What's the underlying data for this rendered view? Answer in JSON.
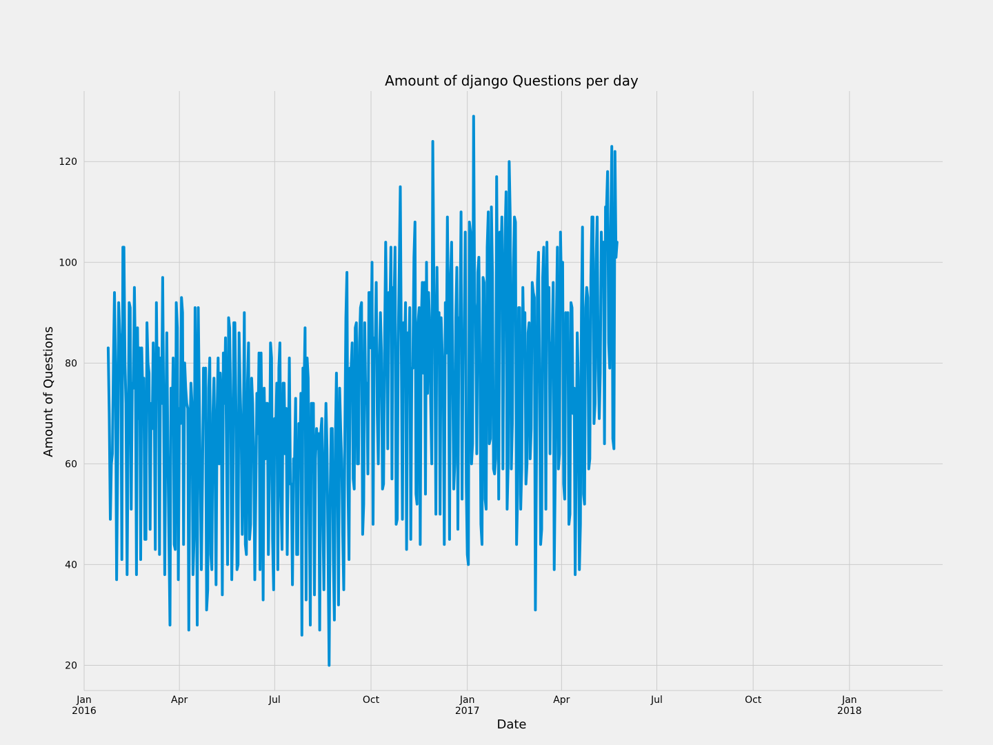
{
  "chart_data": {
    "type": "line",
    "title": "Amount of django Questions per day",
    "xlabel": "Date",
    "ylabel": "Amount of Questions",
    "grid": true,
    "colors": {
      "background": "#f0f0f0",
      "line": "#008fd5",
      "grid": "#cbcbcb"
    },
    "xlim": [
      "2016-01-01",
      "2018-03-31"
    ],
    "ylim": [
      15,
      134
    ],
    "yticks": [
      20,
      40,
      60,
      80,
      100,
      120
    ],
    "xticks": [
      {
        "date": "2016-01-01",
        "label": "Jan",
        "sublabel": "2016"
      },
      {
        "date": "2016-04-01",
        "label": "Apr",
        "sublabel": ""
      },
      {
        "date": "2016-07-01",
        "label": "Jul",
        "sublabel": ""
      },
      {
        "date": "2016-10-01",
        "label": "Oct",
        "sublabel": ""
      },
      {
        "date": "2017-01-01",
        "label": "Jan",
        "sublabel": "2017"
      },
      {
        "date": "2017-04-01",
        "label": "Apr",
        "sublabel": ""
      },
      {
        "date": "2017-07-01",
        "label": "Jul",
        "sublabel": ""
      },
      {
        "date": "2017-10-01",
        "label": "Oct",
        "sublabel": ""
      },
      {
        "date": "2018-01-01",
        "label": "Jan",
        "sublabel": "2018"
      }
    ],
    "series": [
      {
        "start": "2016-01-24",
        "frequency": "daily",
        "values": [
          83,
          70,
          49,
          60,
          62,
          80,
          94,
          80,
          37,
          60,
          92,
          86,
          84,
          41,
          103,
          103,
          80,
          72,
          38,
          64,
          92,
          91,
          51,
          76,
          75,
          95,
          80,
          38,
          87,
          69,
          83,
          41,
          83,
          74,
          77,
          45,
          45,
          88,
          80,
          78,
          47,
          72,
          67,
          84,
          72,
          43,
          92,
          73,
          83,
          42,
          81,
          72,
          97,
          70,
          38,
          67,
          86,
          62,
          45,
          28,
          75,
          66,
          81,
          44,
          43,
          92,
          87,
          37,
          71,
          68,
          93,
          90,
          44,
          80,
          75,
          72,
          71,
          27,
          65,
          76,
          72,
          38,
          45,
          91,
          73,
          28,
          91,
          73,
          57,
          39,
          57,
          79,
          74,
          79,
          31,
          35,
          75,
          81,
          42,
          39,
          70,
          77,
          61,
          36,
          70,
          81,
          60,
          78,
          72,
          34,
          82,
          72,
          85,
          63,
          40,
          89,
          87,
          72,
          37,
          50,
          88,
          88,
          70,
          39,
          40,
          86,
          75,
          67,
          46,
          63,
          90,
          44,
          42,
          76,
          84,
          45,
          48,
          77,
          72,
          61,
          37,
          55,
          74,
          66,
          82,
          39,
          82,
          64,
          33,
          75,
          61,
          72,
          72,
          42,
          57,
          84,
          81,
          45,
          35,
          69,
          66,
          76,
          39,
          79,
          84,
          54,
          43,
          76,
          76,
          62,
          71,
          42,
          62,
          81,
          56,
          56,
          36,
          61,
          61,
          73,
          42,
          42,
          68,
          60,
          74,
          26,
          79,
          74,
          87,
          33,
          81,
          77,
          54,
          28,
          72,
          72,
          72,
          34,
          61,
          67,
          63,
          66,
          27,
          66,
          69,
          50,
          35,
          62,
          72,
          63,
          41,
          20,
          53,
          67,
          67,
          41,
          29,
          65,
          78,
          60,
          32,
          75,
          67,
          61,
          46,
          35,
          66,
          89,
          98,
          56,
          41,
          79,
          79,
          84,
          57,
          55,
          87,
          88,
          60,
          60,
          84,
          91,
          92,
          46,
          52,
          88,
          72,
          76,
          58,
          94,
          94,
          83,
          100,
          48,
          85,
          82,
          96,
          70,
          60,
          80,
          90,
          82,
          55,
          56,
          85,
          104,
          87,
          63,
          94,
          89,
          103,
          57,
          95,
          92,
          103,
          48,
          49,
          84,
          99,
          115,
          82,
          49,
          88,
          83,
          92,
          43,
          86,
          80,
          91,
          45,
          79,
          79,
          101,
          108,
          54,
          52,
          88,
          91,
          44,
          88,
          96,
          78,
          96,
          54,
          100,
          74,
          94,
          88,
          72,
          60,
          124,
          97,
          84,
          50,
          99,
          80,
          90,
          50,
          89,
          82,
          76,
          44,
          92,
          82,
          109,
          85,
          45,
          97,
          104,
          79,
          55,
          60,
          89,
          99,
          47,
          89,
          88,
          110,
          53,
          86,
          85,
          106,
          56,
          42,
          40,
          108,
          106,
          60,
          64,
          129,
          92,
          89,
          62,
          98,
          101,
          82,
          48,
          44,
          97,
          96,
          53,
          51,
          103,
          110,
          64,
          65,
          111,
          98,
          59,
          58,
          61,
          117,
          89,
          53,
          106,
          100,
          109,
          59,
          92,
          105,
          114,
          51,
          60,
          120,
          109,
          59,
          68,
          99,
          109,
          108,
          44,
          54,
          91,
          91,
          51,
          59,
          95,
          83,
          90,
          56,
          60,
          86,
          88,
          61,
          67,
          96,
          94,
          93,
          31,
          60,
          96,
          102,
          78,
          44,
          47,
          97,
          103,
          89,
          51,
          104,
          86,
          95,
          62,
          84,
          84,
          96,
          39,
          58,
          88,
          103,
          59,
          62,
          106,
          94,
          100,
          56,
          53,
          90,
          83,
          90,
          48,
          50,
          92,
          91,
          70,
          75,
          38,
          62,
          86,
          77,
          39,
          48,
          90,
          107,
          54,
          52,
          91,
          95,
          93,
          59,
          61,
          97,
          109,
          109,
          68,
          72,
          100,
          109,
          79,
          69,
          78,
          106,
          96,
          104,
          64,
          111,
          111,
          118,
          84,
          79,
          107,
          123,
          65,
          63,
          122,
          101,
          104
        ]
      }
    ]
  }
}
